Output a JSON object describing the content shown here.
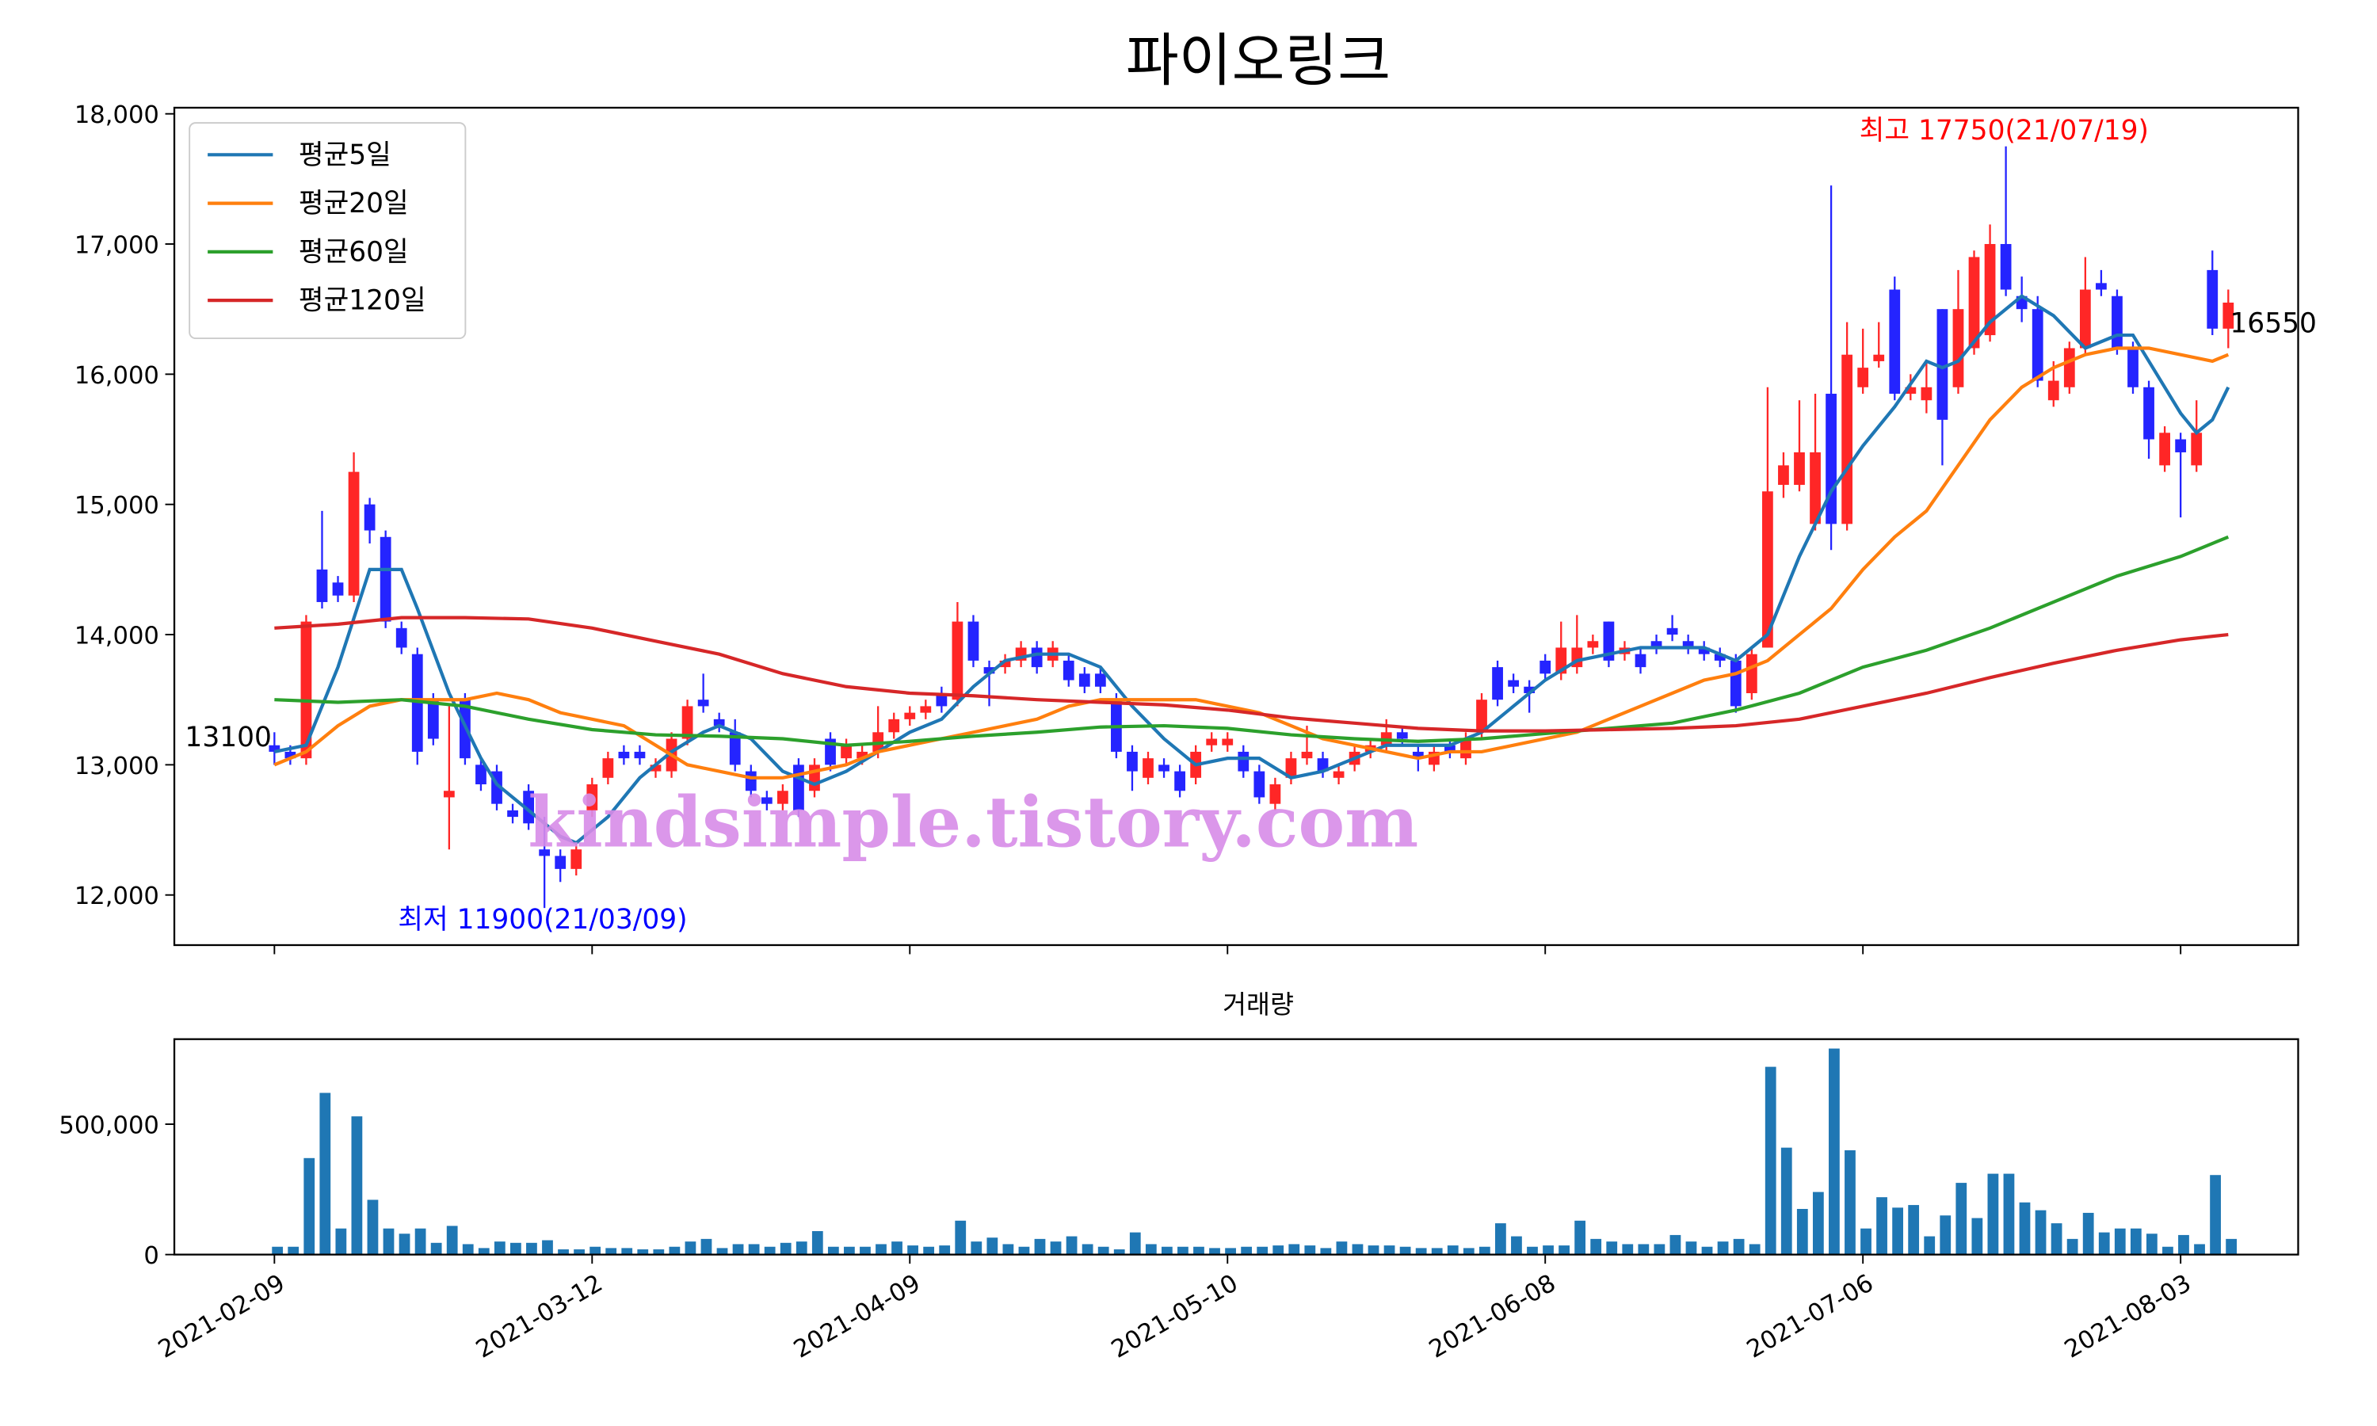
{
  "chart_data": [
    {
      "type": "candlestick",
      "title": "파이오링크",
      "up_color": "#ff2626",
      "down_color": "#2424ff",
      "open": [
        13150,
        13100,
        13050,
        14500,
        14400,
        14300,
        15000,
        14750,
        14050,
        13850,
        13500,
        12750,
        13500,
        13000,
        12950,
        12650,
        12800,
        12350,
        12300,
        12200,
        12650,
        12900,
        13100,
        13100,
        12950,
        12950,
        13200,
        13500,
        13350,
        13250,
        12950,
        12750,
        12700,
        13000,
        12800,
        13200,
        13050,
        13050,
        13100,
        13250,
        13350,
        13400,
        13550,
        13500,
        14100,
        13750,
        13750,
        13800,
        13900,
        13800,
        13800,
        13700,
        13700,
        13500,
        13100,
        12900,
        13000,
        12950,
        12900,
        13150,
        13150,
        13100,
        12950,
        12700,
        12900,
        13050,
        13050,
        12900,
        13000,
        13100,
        13150,
        13250,
        13100,
        13000,
        13150,
        13050,
        13250,
        13750,
        13650,
        13600,
        13800,
        13700,
        13750,
        13900,
        14100,
        13850,
        13850,
        13950,
        14050,
        13950,
        13900,
        13850,
        13800,
        13550,
        13900,
        15150,
        15150,
        14850,
        15850,
        14850,
        15900,
        16100,
        16650,
        15850,
        15800,
        16500,
        15900,
        16200,
        16300,
        17000,
        16600,
        16500,
        15800,
        15900,
        16200,
        16700,
        16600,
        16200,
        15900,
        15300,
        15500,
        15300,
        16800,
        16350
      ],
      "high": [
        13250,
        13150,
        14150,
        14950,
        14450,
        15400,
        15050,
        14800,
        14100,
        13900,
        13550,
        13450,
        13550,
        13050,
        13000,
        12700,
        12850,
        12600,
        12350,
        12400,
        12900,
        13100,
        13150,
        13150,
        13050,
        13250,
        13500,
        13700,
        13400,
        13350,
        13000,
        12800,
        12850,
        13050,
        13050,
        13250,
        13200,
        13150,
        13450,
        13400,
        13450,
        13500,
        13600,
        14250,
        14150,
        13800,
        13850,
        13950,
        13950,
        13950,
        13850,
        13750,
        13750,
        13550,
        13150,
        13100,
        13050,
        13000,
        13150,
        13250,
        13250,
        13150,
        13000,
        12900,
        13100,
        13300,
        13100,
        13000,
        13150,
        13200,
        13350,
        13300,
        13150,
        13150,
        13200,
        13250,
        13550,
        13800,
        13700,
        13650,
        13850,
        14100,
        14150,
        14000,
        14100,
        13950,
        13900,
        14000,
        14150,
        14000,
        13950,
        13900,
        13850,
        13900,
        15900,
        15400,
        15800,
        15850,
        17450,
        16400,
        16350,
        16400,
        16750,
        16000,
        16100,
        16500,
        16800,
        16950,
        17150,
        17750,
        16750,
        16600,
        16100,
        16250,
        16900,
        16800,
        16650,
        16250,
        15950,
        15600,
        15550,
        15800,
        16950,
        16650
      ],
      "low": [
        13000,
        13000,
        13000,
        14200,
        14250,
        14250,
        14700,
        14050,
        13850,
        13000,
        13150,
        12350,
        13000,
        12800,
        12650,
        12550,
        12500,
        11900,
        12100,
        12150,
        12600,
        12850,
        13000,
        13000,
        12900,
        12900,
        13150,
        13400,
        13250,
        12950,
        12750,
        12650,
        12650,
        12600,
        12750,
        12950,
        13000,
        13000,
        13050,
        13200,
        13300,
        13350,
        13400,
        13450,
        13750,
        13450,
        13700,
        13750,
        13700,
        13750,
        13600,
        13550,
        13550,
        13050,
        12800,
        12850,
        12900,
        12750,
        12850,
        13100,
        13100,
        12900,
        12700,
        12650,
        12850,
        13000,
        12900,
        12850,
        12950,
        13050,
        13100,
        13150,
        12950,
        12950,
        13050,
        13000,
        13200,
        13450,
        13550,
        13400,
        13650,
        13650,
        13700,
        13850,
        13750,
        13800,
        13700,
        13850,
        13950,
        13850,
        13800,
        13750,
        13400,
        13500,
        13900,
        15050,
        15100,
        14800,
        14650,
        14800,
        15850,
        16050,
        15800,
        15800,
        15700,
        15300,
        15850,
        16150,
        16250,
        16600,
        16400,
        15900,
        15750,
        15850,
        16150,
        16600,
        16150,
        15850,
        15350,
        15250,
        14900,
        15250,
        16300,
        16200
      ],
      "close": [
        13100,
        13050,
        14100,
        14250,
        14300,
        15250,
        14800,
        14100,
        13900,
        13100,
        13200,
        12800,
        13050,
        12850,
        12700,
        12600,
        12550,
        12300,
        12200,
        12350,
        12850,
        13050,
        13050,
        13050,
        13000,
        13200,
        13450,
        13450,
        13300,
        13000,
        12800,
        12700,
        12800,
        12650,
        13000,
        13000,
        13150,
        13100,
        13250,
        13350,
        13400,
        13450,
        13450,
        14100,
        13800,
        13700,
        13800,
        13900,
        13750,
        13900,
        13650,
        13600,
        13600,
        13100,
        12950,
        13050,
        12950,
        12800,
        13100,
        13200,
        13200,
        12950,
        12750,
        12850,
        13050,
        13100,
        12950,
        12950,
        13100,
        13150,
        13250,
        13200,
        13050,
        13100,
        13100,
        13200,
        13500,
        13500,
        13600,
        13550,
        13700,
        13900,
        13900,
        13950,
        13800,
        13900,
        13750,
        13900,
        14000,
        13900,
        13850,
        13800,
        13450,
        13850,
        15100,
        15300,
        15400,
        15400,
        14850,
        16150,
        16050,
        16150,
        15850,
        15900,
        15900,
        15650,
        16500,
        16900,
        17000,
        16650,
        16500,
        15950,
        15950,
        16200,
        16650,
        16650,
        16200,
        15900,
        15500,
        15550,
        15400,
        15550,
        16350,
        16550
      ],
      "lines": [
        {
          "name": "평균5일",
          "color": "#1f77b4",
          "x": [
            0,
            2,
            4,
            6,
            8,
            9,
            11,
            13,
            14,
            16,
            18,
            19,
            21,
            23,
            25,
            27,
            28,
            30,
            32,
            34,
            36,
            38,
            40,
            42,
            44,
            46,
            48,
            50,
            52,
            54,
            56,
            58,
            60,
            62,
            64,
            66,
            68,
            70,
            72,
            74,
            76,
            78,
            80,
            82,
            84,
            86,
            88,
            90,
            92,
            94,
            96,
            98,
            100,
            102,
            104,
            105,
            106,
            108,
            110,
            112,
            114,
            116,
            117,
            118,
            120,
            121,
            122,
            123
          ],
          "values": [
            13100,
            13150,
            13750,
            14500,
            14500,
            14200,
            13550,
            13050,
            12850,
            12650,
            12450,
            12400,
            12600,
            12900,
            13100,
            13250,
            13300,
            13200,
            12950,
            12850,
            12950,
            13100,
            13250,
            13350,
            13600,
            13800,
            13850,
            13850,
            13750,
            13450,
            13200,
            13000,
            13050,
            13050,
            12900,
            12950,
            13050,
            13150,
            13150,
            13150,
            13250,
            13450,
            13650,
            13800,
            13850,
            13900,
            13900,
            13900,
            13800,
            14000,
            14600,
            15100,
            15450,
            15750,
            16100,
            16050,
            16100,
            16400,
            16600,
            16450,
            16200,
            16300,
            16300,
            16100,
            15700,
            15550,
            15650,
            15900
          ]
        },
        {
          "name": "평균20일",
          "color": "#ff7f0e",
          "x": [
            0,
            2,
            4,
            6,
            8,
            10,
            12,
            14,
            16,
            18,
            20,
            22,
            24,
            26,
            28,
            30,
            32,
            34,
            36,
            38,
            40,
            42,
            44,
            46,
            48,
            50,
            52,
            54,
            56,
            58,
            60,
            62,
            64,
            66,
            68,
            70,
            72,
            74,
            76,
            78,
            80,
            82,
            84,
            86,
            88,
            90,
            92,
            94,
            96,
            98,
            100,
            102,
            104,
            106,
            108,
            110,
            112,
            114,
            116,
            118,
            120,
            122,
            123
          ],
          "values": [
            13000,
            13100,
            13300,
            13450,
            13500,
            13500,
            13500,
            13550,
            13500,
            13400,
            13350,
            13300,
            13150,
            13000,
            12950,
            12900,
            12900,
            12950,
            13000,
            13100,
            13150,
            13200,
            13250,
            13300,
            13350,
            13450,
            13500,
            13500,
            13500,
            13500,
            13450,
            13400,
            13300,
            13200,
            13150,
            13100,
            13050,
            13100,
            13100,
            13150,
            13200,
            13250,
            13350,
            13450,
            13550,
            13650,
            13700,
            13800,
            14000,
            14200,
            14500,
            14750,
            14950,
            15300,
            15650,
            15900,
            16050,
            16150,
            16200,
            16200,
            16150,
            16100,
            16150
          ]
        },
        {
          "name": "평균60일",
          "color": "#2ca02c",
          "x": [
            0,
            4,
            8,
            12,
            16,
            20,
            24,
            28,
            32,
            36,
            40,
            44,
            48,
            52,
            56,
            60,
            64,
            68,
            72,
            76,
            80,
            84,
            88,
            92,
            96,
            100,
            104,
            108,
            112,
            116,
            120,
            123
          ],
          "values": [
            13500,
            13480,
            13500,
            13450,
            13350,
            13270,
            13230,
            13220,
            13200,
            13150,
            13180,
            13220,
            13250,
            13290,
            13300,
            13280,
            13230,
            13200,
            13180,
            13200,
            13240,
            13280,
            13320,
            13420,
            13550,
            13750,
            13880,
            14050,
            14250,
            14450,
            14600,
            14750
          ]
        },
        {
          "name": "평균120일",
          "color": "#d62728",
          "x": [
            0,
            4,
            8,
            12,
            16,
            20,
            24,
            28,
            32,
            36,
            40,
            44,
            48,
            52,
            56,
            60,
            64,
            68,
            72,
            76,
            80,
            84,
            88,
            92,
            96,
            100,
            104,
            108,
            112,
            116,
            120,
            123
          ],
          "values": [
            14050,
            14080,
            14130,
            14130,
            14120,
            14050,
            13950,
            13850,
            13700,
            13600,
            13550,
            13530,
            13500,
            13480,
            13460,
            13420,
            13360,
            13320,
            13280,
            13260,
            13260,
            13270,
            13280,
            13300,
            13350,
            13450,
            13550,
            13670,
            13780,
            13880,
            13960,
            14000
          ]
        }
      ],
      "high_label": "최고 17750(21/07/19)",
      "low_label": "최저 11900(21/03/09)",
      "first_label": "13100",
      "last_label": "16550",
      "watermark": "kindsimple.tistory.com",
      "legend": "upper left",
      "xlim": [
        -6.3,
        127.4
      ],
      "ylim": [
        11615,
        18047
      ],
      "xticks": [
        {
          "value": 0,
          "label": "2021-02-09"
        },
        {
          "value": 20,
          "label": "2021-03-12"
        },
        {
          "value": 40,
          "label": "2021-04-09"
        },
        {
          "value": 60,
          "label": "2021-05-10"
        },
        {
          "value": 80,
          "label": "2021-06-08"
        },
        {
          "value": 100,
          "label": "2021-07-06"
        },
        {
          "value": 120,
          "label": "2021-08-03"
        }
      ],
      "yticks": [
        {
          "value": 12000,
          "label": "12,000"
        },
        {
          "value": 13000,
          "label": "13,000"
        },
        {
          "value": 14000,
          "label": "14,000"
        },
        {
          "value": 15000,
          "label": "15,000"
        },
        {
          "value": 16000,
          "label": "16,000"
        },
        {
          "value": 17000,
          "label": "17,000"
        },
        {
          "value": 18000,
          "label": "18,000"
        }
      ]
    },
    {
      "type": "bar",
      "title": "거래량",
      "color": "#1f77b4",
      "values": [
        30000,
        30000,
        370000,
        620000,
        100000,
        530000,
        210000,
        100000,
        80000,
        100000,
        45000,
        110000,
        40000,
        25000,
        50000,
        45000,
        45000,
        55000,
        20000,
        20000,
        30000,
        25000,
        25000,
        20000,
        20000,
        30000,
        50000,
        60000,
        25000,
        40000,
        40000,
        30000,
        45000,
        50000,
        90000,
        30000,
        30000,
        30000,
        40000,
        50000,
        35000,
        30000,
        35000,
        130000,
        50000,
        65000,
        40000,
        30000,
        60000,
        50000,
        70000,
        40000,
        30000,
        20000,
        85000,
        40000,
        30000,
        30000,
        30000,
        25000,
        25000,
        30000,
        30000,
        35000,
        40000,
        35000,
        25000,
        50000,
        40000,
        35000,
        35000,
        30000,
        25000,
        25000,
        35000,
        25000,
        30000,
        120000,
        70000,
        30000,
        35000,
        35000,
        130000,
        60000,
        50000,
        40000,
        40000,
        40000,
        75000,
        50000,
        30000,
        50000,
        60000,
        40000,
        720000,
        410000,
        175000,
        240000,
        790000,
        400000,
        100000,
        220000,
        180000,
        190000,
        70000,
        150000,
        275000,
        140000,
        310000,
        310000,
        200000,
        170000,
        120000,
        60000,
        160000,
        85000,
        100000,
        100000,
        80000,
        30000,
        75000,
        40000,
        305000,
        60000
      ],
      "xlim": [
        -6.3,
        127.4
      ],
      "ylim": [
        0,
        826000
      ],
      "xticks": [
        {
          "value": 0,
          "label": "2021-02-09"
        },
        {
          "value": 20,
          "label": "2021-03-12"
        },
        {
          "value": 40,
          "label": "2021-04-09"
        },
        {
          "value": 60,
          "label": "2021-05-10"
        },
        {
          "value": 80,
          "label": "2021-06-08"
        },
        {
          "value": 100,
          "label": "2021-07-06"
        },
        {
          "value": 120,
          "label": "2021-08-03"
        }
      ],
      "yticks": [
        0,
        {
          "value": 500000,
          "label": "500,000"
        }
      ]
    }
  ]
}
